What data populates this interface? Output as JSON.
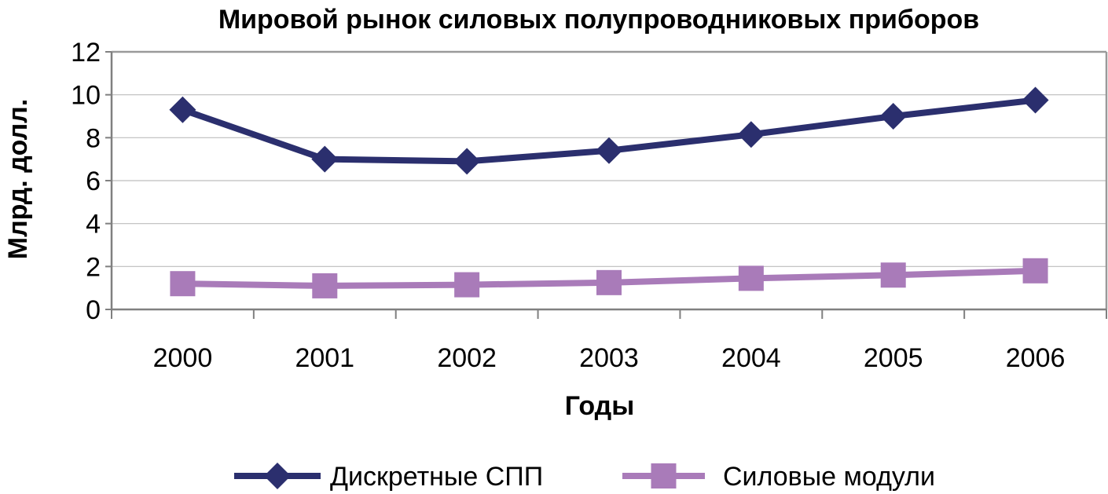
{
  "chart_data": {
    "type": "line",
    "title": "Мировой рынок силовых полупроводниковых приборов",
    "xlabel": "Годы",
    "ylabel": "Млрд. долл.",
    "categories": [
      "2000",
      "2001",
      "2002",
      "2003",
      "2004",
      "2005",
      "2006"
    ],
    "ylim": [
      0,
      12
    ],
    "yticks": [
      0,
      2,
      4,
      6,
      8,
      10,
      12
    ],
    "grid": true,
    "legend_position": "bottom",
    "series": [
      {
        "name": "Дискретные СПП",
        "values": [
          9.3,
          7.0,
          6.9,
          7.4,
          8.15,
          9.0,
          9.75
        ],
        "color": "#2b2f6e",
        "marker": "diamond"
      },
      {
        "name": "Силовые модули",
        "values": [
          1.2,
          1.1,
          1.15,
          1.25,
          1.45,
          1.6,
          1.8
        ],
        "color": "#a97bb9",
        "marker": "square"
      }
    ]
  }
}
